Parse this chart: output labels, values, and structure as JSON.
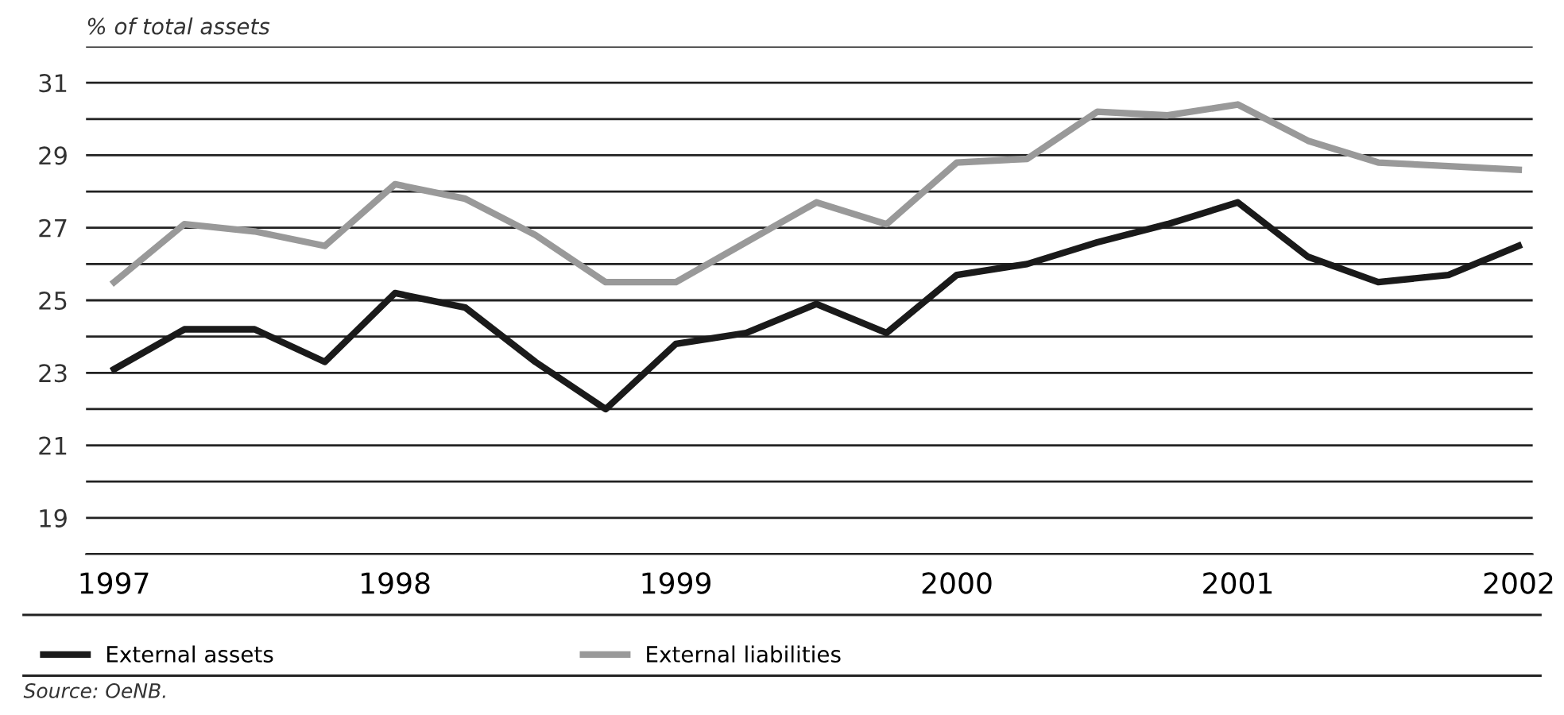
{
  "chart_data": {
    "type": "line",
    "ylabel": "% of total assets",
    "x": [
      1997,
      1997.25,
      1997.5,
      1997.75,
      1998,
      1998.25,
      1998.5,
      1998.75,
      1999,
      1999.25,
      1999.5,
      1999.75,
      2000,
      2000.25,
      2000.5,
      2000.75,
      2001,
      2001.25,
      2001.5,
      2001.75,
      2002
    ],
    "series": [
      {
        "name": "External assets",
        "color": "#1a1a1a",
        "values": [
          23.1,
          24.2,
          24.2,
          23.3,
          25.2,
          24.8,
          23.3,
          22.0,
          23.8,
          24.1,
          24.9,
          24.1,
          25.7,
          26.0,
          26.6,
          27.1,
          27.7,
          26.2,
          25.5,
          25.7,
          26.5
        ]
      },
      {
        "name": "External liabilities",
        "color": "#999999",
        "values": [
          25.5,
          27.1,
          26.9,
          26.5,
          28.2,
          27.8,
          26.8,
          25.5,
          25.5,
          26.6,
          27.7,
          27.1,
          28.8,
          28.9,
          30.2,
          30.1,
          30.4,
          29.4,
          28.8,
          28.7,
          28.6
        ]
      }
    ],
    "xlim": [
      1996.9,
      2002.05
    ],
    "xticks": [
      1997,
      1998,
      1999,
      2000,
      2001,
      2002
    ],
    "ylim": [
      18,
      32
    ],
    "yticks": [
      {
        "value": 18,
        "label": null
      },
      19,
      {
        "value": 20,
        "label": null
      },
      21,
      {
        "value": 22,
        "label": null
      },
      23,
      {
        "value": 24,
        "label": null
      },
      25,
      {
        "value": 26,
        "label": null
      },
      27,
      {
        "value": 28,
        "label": null
      },
      29,
      {
        "value": 30,
        "label": null
      },
      31,
      {
        "value": 32,
        "label": null
      }
    ],
    "grid": "y",
    "legend": "bottom",
    "marker": "none",
    "line_style": "solid",
    "annotations": [
      "Source: OeNB."
    ]
  }
}
